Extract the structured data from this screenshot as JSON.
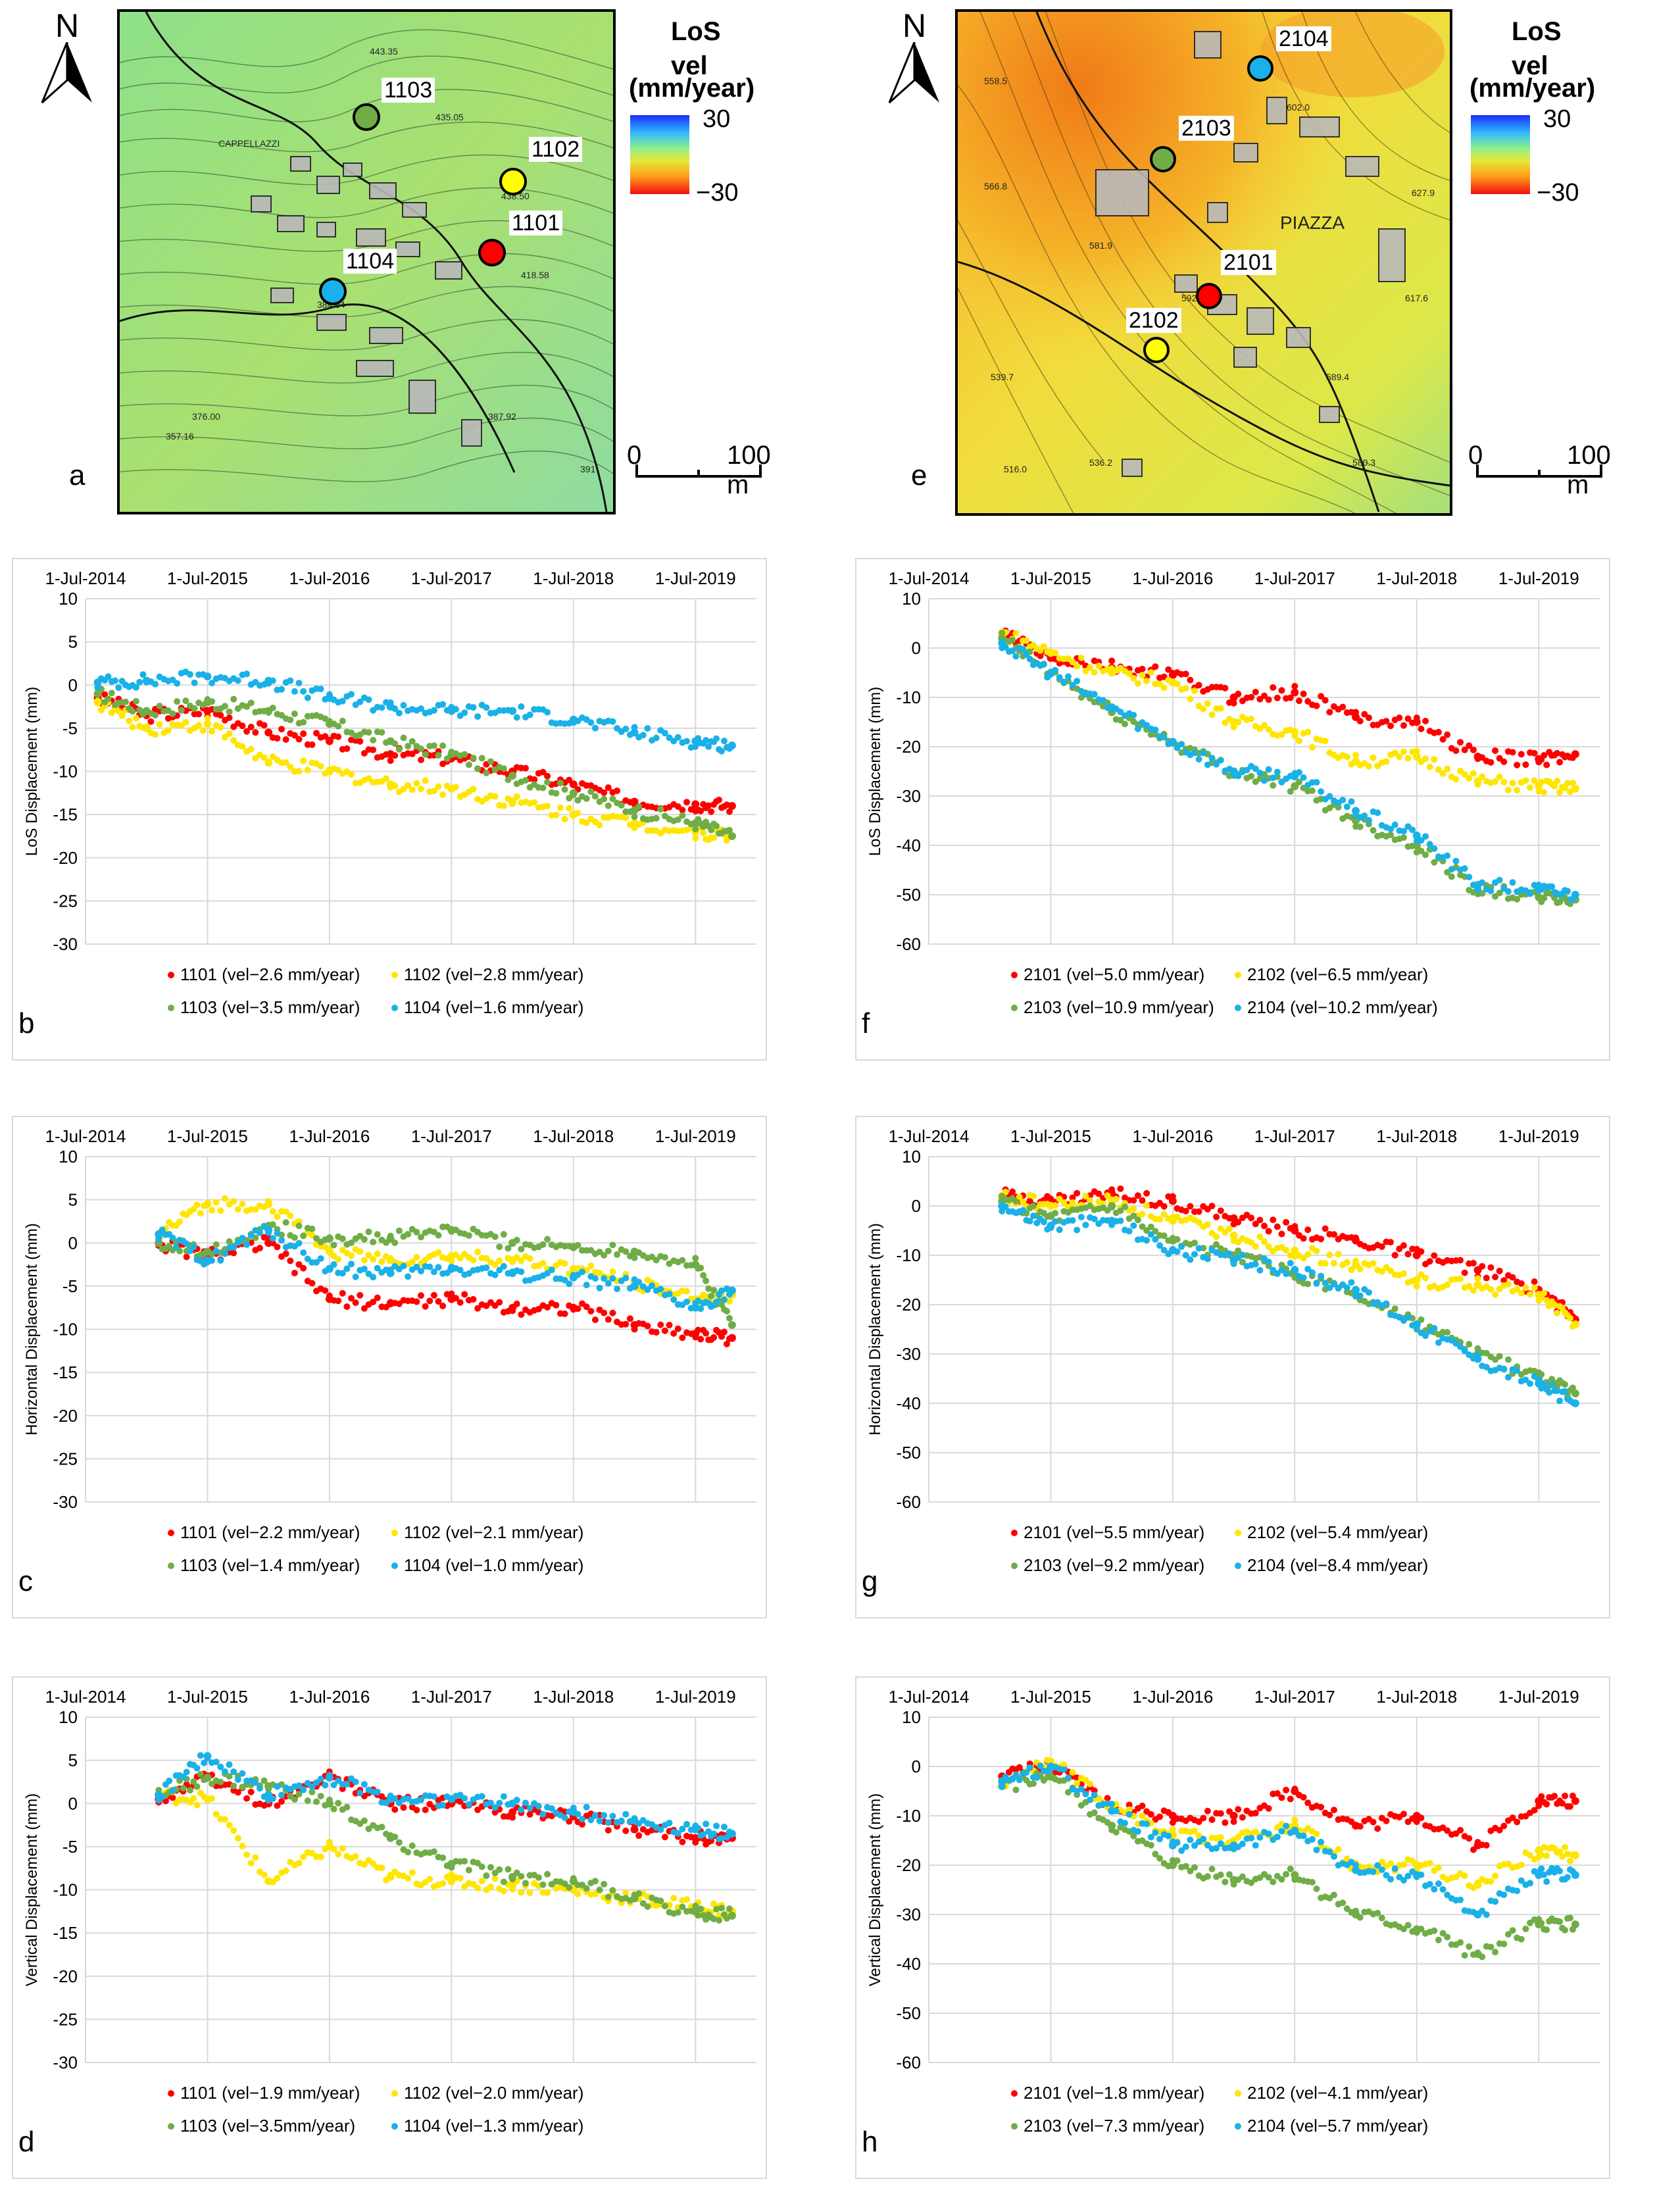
{
  "maps": [
    {
      "panel": "a",
      "north": "N",
      "legend_title_1": "LoS vel",
      "legend_title_2": "(mm/year)",
      "legend_max": "30",
      "legend_min": "−30",
      "scale_start": "0",
      "scale_end": "100 m",
      "place_label": "CAPPELLAZZI",
      "elevations": [
        "443.35",
        "435.05",
        "438.50",
        "418.58",
        "384.64",
        "376.00",
        "357.16",
        "387.92",
        "391"
      ],
      "points": [
        {
          "id": "1103",
          "color": "#70ad47"
        },
        {
          "id": "1102",
          "color": "#ffff00"
        },
        {
          "id": "1101",
          "color": "#ff0000"
        },
        {
          "id": "1104",
          "color": "#1ab1e8"
        }
      ]
    },
    {
      "panel": "e",
      "north": "N",
      "legend_title_1": "LoS vel",
      "legend_title_2": "(mm/year)",
      "legend_max": "30",
      "legend_min": "−30",
      "scale_start": "0",
      "scale_end": "100 m",
      "place_label": "PIAZZA",
      "elevations": [
        "558.5",
        "566.8",
        "581.9",
        "602.0",
        "627.9",
        "617.6",
        "589.4",
        "539.7",
        "516.0",
        "536.2",
        "580.3",
        "592.0"
      ],
      "points": [
        {
          "id": "2104",
          "color": "#1ab1e8"
        },
        {
          "id": "2103",
          "color": "#70ad47"
        },
        {
          "id": "2101",
          "color": "#ff0000"
        },
        {
          "id": "2102",
          "color": "#ffff00"
        }
      ]
    }
  ],
  "chart_data": [
    {
      "panel": "b",
      "type": "scatter",
      "ylabel": "LoS Displacement (mm)",
      "ylim": [
        -30,
        10
      ],
      "ystep": 5,
      "x_ticks": [
        "1-Jul-2014",
        "1-Jul-2015",
        "1-Jul-2016",
        "1-Jul-2017",
        "1-Jul-2018",
        "1-Jul-2019"
      ],
      "x_tick_years": [
        2014.5,
        2015.5,
        2016.5,
        2017.5,
        2018.5,
        2019.5
      ],
      "xlim": [
        2014.5,
        2020.0
      ],
      "series": [
        {
          "name": "1101 (vel−2.6 mm/year)",
          "color": "#ff0000",
          "x": [
            2014.6,
            2015.0,
            2015.5,
            2016.0,
            2016.5,
            2017.0,
            2017.5,
            2018.0,
            2018.5,
            2019.0,
            2019.5,
            2019.8
          ],
          "y": [
            -1.5,
            -3.5,
            -3.0,
            -5.5,
            -6.5,
            -8.0,
            -8.5,
            -10.0,
            -11.5,
            -13.5,
            -13.8,
            -14.0
          ]
        },
        {
          "name": "1102 (vel−2.8 mm/year)",
          "color": "#ffe600",
          "x": [
            2014.6,
            2015.0,
            2015.5,
            2016.0,
            2016.5,
            2017.0,
            2017.5,
            2018.0,
            2018.5,
            2019.0,
            2019.5,
            2019.8
          ],
          "y": [
            -2.0,
            -5.0,
            -4.5,
            -9.0,
            -10.0,
            -11.5,
            -12.0,
            -13.5,
            -15.0,
            -16.0,
            -17.0,
            -17.5
          ]
        },
        {
          "name": "1103 (vel−3.5 mm/year)",
          "color": "#70ad47",
          "x": [
            2014.6,
            2015.0,
            2015.5,
            2016.0,
            2016.5,
            2017.0,
            2017.5,
            2018.0,
            2018.5,
            2019.0,
            2019.5,
            2019.8
          ],
          "y": [
            -1.0,
            -3.0,
            -2.0,
            -3.0,
            -4.5,
            -6.5,
            -8.0,
            -10.5,
            -12.5,
            -14.5,
            -16.0,
            -17.5
          ]
        },
        {
          "name": "1104 (vel−1.6 mm/year)",
          "color": "#1ab1e8",
          "x": [
            2014.6,
            2015.0,
            2015.5,
            2016.0,
            2016.5,
            2017.0,
            2017.5,
            2018.0,
            2018.5,
            2019.0,
            2019.5,
            2019.8
          ],
          "y": [
            0.3,
            0.5,
            1.0,
            0.5,
            -1.5,
            -2.5,
            -3.0,
            -3.0,
            -4.0,
            -5.5,
            -6.5,
            -7.0
          ]
        }
      ]
    },
    {
      "panel": "f",
      "type": "scatter",
      "ylabel": "LoS Displacement (mm)",
      "ylim": [
        -60,
        10
      ],
      "ystep": 10,
      "x_ticks": [
        "1-Jul-2014",
        "1-Jul-2015",
        "1-Jul-2016",
        "1-Jul-2017",
        "1-Jul-2018",
        "1-Jul-2019"
      ],
      "x_tick_years": [
        2014.5,
        2015.5,
        2016.5,
        2017.5,
        2018.5,
        2019.5
      ],
      "xlim": [
        2014.5,
        2020.0
      ],
      "series": [
        {
          "name": "2101 (vel−5.0 mm/year)",
          "color": "#ff0000",
          "x": [
            2015.1,
            2015.5,
            2016.0,
            2016.5,
            2017.0,
            2017.5,
            2018.0,
            2018.5,
            2019.0,
            2019.5,
            2019.8
          ],
          "y": [
            3.0,
            -2.0,
            -4.0,
            -5.5,
            -10.0,
            -9.0,
            -14.0,
            -15.0,
            -22.0,
            -22.5,
            -21.5
          ]
        },
        {
          "name": "2102 (vel−6.5 mm/year)",
          "color": "#ffe600",
          "x": [
            2015.1,
            2015.5,
            2016.0,
            2016.5,
            2017.0,
            2017.5,
            2018.0,
            2018.5,
            2019.0,
            2019.5,
            2019.8
          ],
          "y": [
            3.0,
            -1.0,
            -5.0,
            -7.0,
            -15.0,
            -17.0,
            -23.0,
            -22.0,
            -27.0,
            -28.0,
            -28.5
          ]
        },
        {
          "name": "2103 (vel−10.9 mm/year)",
          "color": "#70ad47",
          "x": [
            2015.1,
            2015.5,
            2016.0,
            2016.5,
            2017.0,
            2017.5,
            2018.0,
            2018.5,
            2019.0,
            2019.5,
            2019.8
          ],
          "y": [
            2.0,
            -5.0,
            -13.0,
            -19.0,
            -25.0,
            -28.0,
            -35.0,
            -40.0,
            -49.0,
            -50.5,
            -51.0
          ]
        },
        {
          "name": "2104 (vel−10.2 mm/year)",
          "color": "#1ab1e8",
          "x": [
            2015.1,
            2015.5,
            2016.0,
            2016.5,
            2017.0,
            2017.5,
            2018.0,
            2018.5,
            2019.0,
            2019.5,
            2019.8
          ],
          "y": [
            1.0,
            -5.0,
            -12.0,
            -19.0,
            -25.0,
            -26.0,
            -33.0,
            -38.0,
            -48.0,
            -49.0,
            -50.0
          ]
        }
      ]
    },
    {
      "panel": "c",
      "type": "scatter",
      "ylabel": "Horizontal Displacement (mm)",
      "ylim": [
        -30,
        10
      ],
      "ystep": 5,
      "x_ticks": [
        "1-Jul-2014",
        "1-Jul-2015",
        "1-Jul-2016",
        "1-Jul-2017",
        "1-Jul-2018",
        "1-Jul-2019"
      ],
      "x_tick_years": [
        2014.5,
        2015.5,
        2016.5,
        2017.5,
        2018.5,
        2019.5
      ],
      "xlim": [
        2014.5,
        2020.0
      ],
      "series": [
        {
          "name": "1101 (vel−2.2 mm/year)",
          "color": "#ff0000",
          "x": [
            2015.1,
            2015.5,
            2016.0,
            2016.5,
            2017.0,
            2017.5,
            2018.0,
            2018.5,
            2019.0,
            2019.5,
            2019.8
          ],
          "y": [
            0.0,
            -1.5,
            0.0,
            -6.5,
            -7.0,
            -6.5,
            -7.5,
            -7.5,
            -9.5,
            -10.5,
            -11.0
          ]
        },
        {
          "name": "1102 (vel−2.1 mm/year)",
          "color": "#ffe600",
          "x": [
            2015.1,
            2015.5,
            2016.0,
            2016.5,
            2017.0,
            2017.5,
            2018.0,
            2018.5,
            2019.0,
            2019.5,
            2019.8
          ],
          "y": [
            1.0,
            4.5,
            4.5,
            -1.0,
            -2.0,
            -1.5,
            -2.0,
            -3.0,
            -4.5,
            -6.5,
            -6.0
          ]
        },
        {
          "name": "1103 (vel−1.4 mm/year)",
          "color": "#70ad47",
          "x": [
            2015.1,
            2015.5,
            2016.0,
            2016.5,
            2017.0,
            2017.5,
            2018.0,
            2018.5,
            2019.0,
            2019.5,
            2019.8
          ],
          "y": [
            0.0,
            -1.0,
            2.0,
            0.5,
            0.5,
            1.5,
            0.0,
            -0.5,
            -1.0,
            -2.5,
            -9.5
          ]
        },
        {
          "name": "1104 (vel−1.0 mm/year)",
          "color": "#1ab1e8",
          "x": [
            2015.1,
            2015.5,
            2016.0,
            2016.5,
            2017.0,
            2017.5,
            2018.0,
            2018.5,
            2019.0,
            2019.5,
            2019.8
          ],
          "y": [
            1.0,
            -2.0,
            1.5,
            -3.0,
            -3.5,
            -3.0,
            -3.5,
            -4.0,
            -5.0,
            -7.5,
            -5.5
          ]
        }
      ]
    },
    {
      "panel": "g",
      "type": "scatter",
      "ylabel": "Horizontal Displacement (mm)",
      "ylim": [
        -60,
        10
      ],
      "ystep": 10,
      "x_ticks": [
        "1-Jul-2014",
        "1-Jul-2015",
        "1-Jul-2016",
        "1-Jul-2017",
        "1-Jul-2018",
        "1-Jul-2019"
      ],
      "x_tick_years": [
        2014.5,
        2015.5,
        2016.5,
        2017.5,
        2018.5,
        2019.5
      ],
      "xlim": [
        2014.5,
        2020.0
      ],
      "series": [
        {
          "name": "2101 (vel−5.5 mm/year)",
          "color": "#ff0000",
          "x": [
            2015.1,
            2015.5,
            2016.0,
            2016.5,
            2017.0,
            2017.5,
            2018.0,
            2018.5,
            2019.0,
            2019.5,
            2019.8
          ],
          "y": [
            2.0,
            1.0,
            2.5,
            1.0,
            -2.5,
            -5.0,
            -7.0,
            -10.0,
            -13.0,
            -17.0,
            -23.0
          ]
        },
        {
          "name": "2102 (vel−5.4 mm/year)",
          "color": "#ffe600",
          "x": [
            2015.1,
            2015.5,
            2016.0,
            2016.5,
            2017.0,
            2017.5,
            2018.0,
            2018.5,
            2019.0,
            2019.5,
            2019.8
          ],
          "y": [
            2.0,
            0.0,
            1.0,
            -3.0,
            -6.0,
            -9.0,
            -12.0,
            -15.0,
            -16.0,
            -18.0,
            -24.0
          ]
        },
        {
          "name": "2103 (vel−9.2 mm/year)",
          "color": "#70ad47",
          "x": [
            2015.1,
            2015.5,
            2016.0,
            2016.5,
            2017.0,
            2017.5,
            2018.0,
            2018.5,
            2019.0,
            2019.5,
            2019.8
          ],
          "y": [
            1.0,
            -2.0,
            0.0,
            -7.0,
            -10.0,
            -14.0,
            -18.0,
            -24.0,
            -30.0,
            -35.0,
            -38.0
          ]
        },
        {
          "name": "2104 (vel−8.4 mm/year)",
          "color": "#1ab1e8",
          "x": [
            2015.1,
            2015.5,
            2016.0,
            2016.5,
            2017.0,
            2017.5,
            2018.0,
            2018.5,
            2019.0,
            2019.5,
            2019.8
          ],
          "y": [
            0.0,
            -4.0,
            -3.0,
            -9.0,
            -11.0,
            -13.0,
            -17.0,
            -24.0,
            -31.0,
            -36.0,
            -40.0
          ]
        }
      ]
    },
    {
      "panel": "d",
      "type": "scatter",
      "ylabel": "Vertical Displacement (mm)",
      "ylim": [
        -30,
        10
      ],
      "ystep": 5,
      "x_ticks": [
        "1-Jul-2014",
        "1-Jul-2015",
        "1-Jul-2016",
        "1-Jul-2017",
        "1-Jul-2018",
        "1-Jul-2019"
      ],
      "x_tick_years": [
        2014.5,
        2015.5,
        2016.5,
        2017.5,
        2018.5,
        2019.5
      ],
      "xlim": [
        2014.5,
        2020.0
      ],
      "series": [
        {
          "name": "1101 (vel−1.9 mm/year)",
          "color": "#ff0000",
          "x": [
            2015.1,
            2015.5,
            2016.0,
            2016.5,
            2017.0,
            2017.5,
            2018.0,
            2018.5,
            2019.0,
            2019.5,
            2019.8
          ],
          "y": [
            0.5,
            3.0,
            0.0,
            3.0,
            0.0,
            0.0,
            -1.0,
            -1.5,
            -3.0,
            -4.0,
            -4.0
          ]
        },
        {
          "name": "1102 (vel−2.0 mm/year)",
          "color": "#ffe600",
          "x": [
            2015.1,
            2015.5,
            2016.0,
            2016.5,
            2017.0,
            2017.5,
            2018.0,
            2018.5,
            2019.0,
            2019.5,
            2019.8
          ],
          "y": [
            1.0,
            0.5,
            -9.0,
            -5.0,
            -8.5,
            -9.0,
            -9.5,
            -10.0,
            -11.0,
            -12.0,
            -12.5
          ]
        },
        {
          "name": "1103 (vel−3.5mm/year)",
          "color": "#70ad47",
          "x": [
            2015.1,
            2015.5,
            2016.0,
            2016.5,
            2017.0,
            2017.5,
            2018.0,
            2018.5,
            2019.0,
            2019.5,
            2019.8
          ],
          "y": [
            1.0,
            3.0,
            2.0,
            0.0,
            -4.0,
            -7.0,
            -8.5,
            -9.0,
            -11.0,
            -12.5,
            -13.0
          ]
        },
        {
          "name": "1104 (vel−1.3 mm/year)",
          "color": "#1ab1e8",
          "x": [
            2015.1,
            2015.5,
            2016.0,
            2016.5,
            2017.0,
            2017.5,
            2018.0,
            2018.5,
            2019.0,
            2019.5,
            2019.8
          ],
          "y": [
            1.0,
            5.5,
            1.0,
            3.0,
            0.5,
            0.5,
            0.0,
            -1.0,
            -2.0,
            -3.0,
            -3.5
          ]
        }
      ]
    },
    {
      "panel": "h",
      "type": "scatter",
      "ylabel": "Vertical Displacement (mm)",
      "ylim": [
        -60,
        10
      ],
      "ystep": 10,
      "x_ticks": [
        "1-Jul-2014",
        "1-Jul-2015",
        "1-Jul-2016",
        "1-Jul-2017",
        "1-Jul-2018",
        "1-Jul-2019"
      ],
      "x_tick_years": [
        2014.5,
        2015.5,
        2016.5,
        2017.5,
        2018.5,
        2019.5
      ],
      "xlim": [
        2014.5,
        2020.0
      ],
      "series": [
        {
          "name": "2101 (vel−1.8 mm/year)",
          "color": "#ff0000",
          "x": [
            2015.1,
            2015.5,
            2016.0,
            2016.5,
            2017.0,
            2017.5,
            2018.0,
            2018.5,
            2019.0,
            2019.5,
            2019.8
          ],
          "y": [
            -2.0,
            0.0,
            -8.0,
            -10.0,
            -10.0,
            -5.0,
            -12.0,
            -10.0,
            -16.0,
            -7.0,
            -7.0
          ]
        },
        {
          "name": "2102 (vel−4.1 mm/year)",
          "color": "#ffe600",
          "x": [
            2015.1,
            2015.5,
            2016.0,
            2016.5,
            2017.0,
            2017.5,
            2018.0,
            2018.5,
            2019.0,
            2019.5,
            2019.8
          ],
          "y": [
            -3.0,
            1.0,
            -8.0,
            -14.0,
            -15.0,
            -12.0,
            -20.0,
            -20.0,
            -24.0,
            -17.0,
            -18.0
          ]
        },
        {
          "name": "2103 (vel−7.3 mm/year)",
          "color": "#70ad47",
          "x": [
            2015.1,
            2015.5,
            2016.0,
            2016.5,
            2017.0,
            2017.5,
            2018.0,
            2018.5,
            2019.0,
            2019.5,
            2019.8
          ],
          "y": [
            -4.0,
            -2.0,
            -12.0,
            -20.0,
            -23.0,
            -22.0,
            -30.0,
            -33.0,
            -38.0,
            -32.0,
            -32.0
          ]
        },
        {
          "name": "2104 (vel−5.7 mm/year)",
          "color": "#1ab1e8",
          "x": [
            2015.1,
            2015.5,
            2016.0,
            2016.5,
            2017.0,
            2017.5,
            2018.0,
            2018.5,
            2019.0,
            2019.5,
            2019.8
          ],
          "y": [
            -3.0,
            0.0,
            -9.0,
            -16.0,
            -16.0,
            -13.0,
            -21.0,
            -22.0,
            -30.0,
            -22.0,
            -22.0
          ]
        }
      ]
    }
  ]
}
